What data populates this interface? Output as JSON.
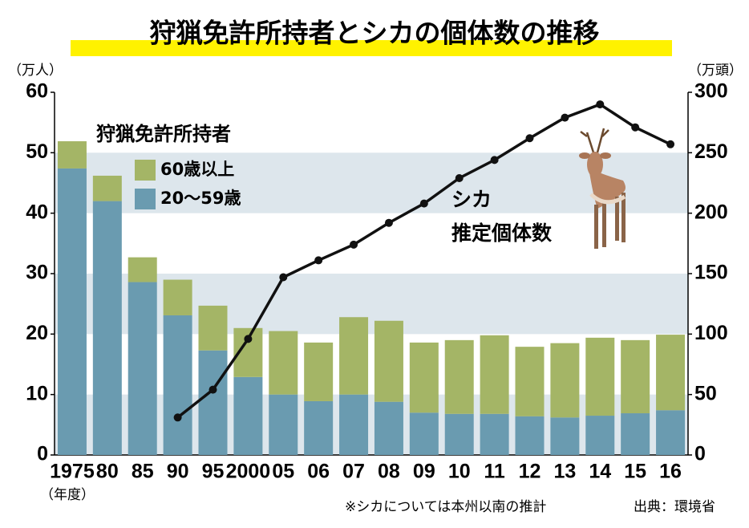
{
  "chart_data": {
    "type": "bar-line",
    "title": "狩猟免許所持者とシカの個体数の推移",
    "y_label": "（万人）",
    "y2_label": "（万頭）",
    "x_label": "（年度）",
    "legend_title": "狩猟免許所持者",
    "categories": [
      "1975",
      "80",
      "85",
      "90",
      "95",
      "2000",
      "05",
      "06",
      "07",
      "08",
      "09",
      "10",
      "11",
      "12",
      "13",
      "14",
      "15",
      "16"
    ],
    "series": [
      {
        "name": "20～59歳",
        "color": "#6a9bb0",
        "values": [
          47.4,
          42.0,
          28.6,
          23.1,
          17.3,
          12.9,
          10.0,
          8.9,
          10.0,
          8.8,
          7.0,
          6.8,
          6.8,
          6.4,
          6.2,
          6.5,
          6.9,
          7.4
        ]
      },
      {
        "name": "60歳以上",
        "color": "#a4b566",
        "values": [
          4.5,
          4.2,
          4.1,
          5.9,
          7.4,
          8.1,
          10.5,
          9.7,
          12.8,
          13.4,
          11.6,
          12.2,
          13.0,
          11.5,
          12.3,
          12.9,
          12.1,
          12.5
        ]
      },
      {
        "name": "シカ\n推定個体数",
        "color": "#111111",
        "axis": "y2",
        "values": [
          null,
          null,
          null,
          31,
          54,
          96,
          147,
          161,
          174,
          192,
          208,
          229,
          244,
          262,
          279,
          290,
          271,
          257
        ]
      }
    ],
    "ylim": [
      0,
      60
    ],
    "yticks": [
      0,
      10,
      20,
      30,
      40,
      50,
      60
    ],
    "y2lim": [
      0,
      300
    ],
    "y2ticks": [
      0,
      50,
      100,
      150,
      200,
      250,
      300
    ],
    "band_color": "#dde6ec",
    "note": "※シカについては本州以南の推計",
    "source": "出典：環境省"
  }
}
